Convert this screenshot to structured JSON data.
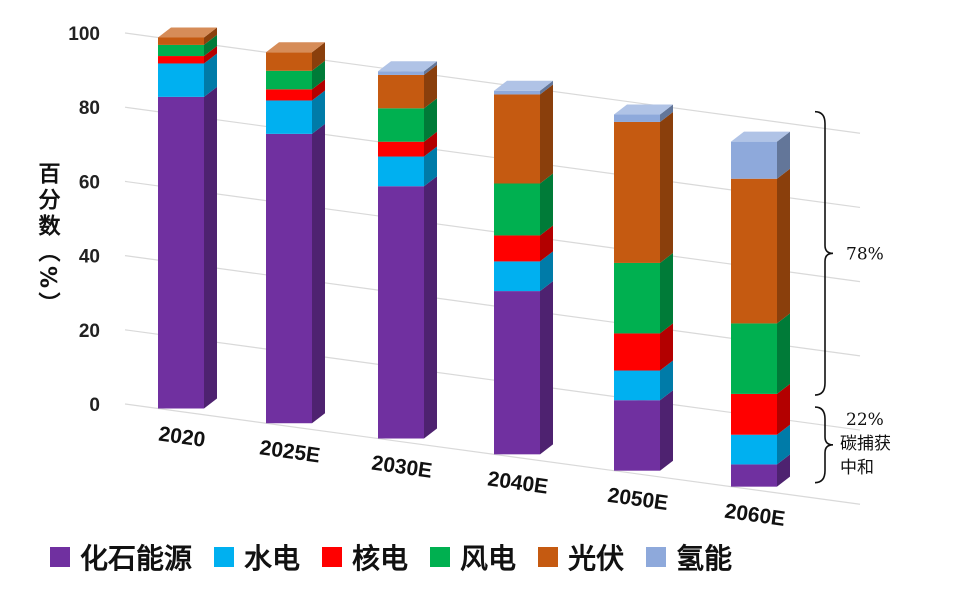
{
  "chart_data": {
    "type": "bar",
    "stacked": true,
    "categories": [
      "2020",
      "2025E",
      "2030E",
      "2040E",
      "2050E",
      "2060E"
    ],
    "ylabel": "百分数（%）",
    "ylim": [
      0,
      100
    ],
    "yticks": [
      "0",
      "20",
      "40",
      "60",
      "80",
      "100"
    ],
    "grid": true,
    "legend_position": "bottom",
    "series": [
      {
        "name": "化石能源",
        "color": "#7030A0",
        "values": [
          84,
          78,
          68,
          44,
          19,
          6
        ]
      },
      {
        "name": "水电",
        "color": "#00B0F0",
        "values": [
          9,
          9,
          8,
          8,
          8,
          8
        ]
      },
      {
        "name": "核电",
        "color": "#FF0000",
        "values": [
          2,
          3,
          4,
          7,
          10,
          11
        ]
      },
      {
        "name": "风电",
        "color": "#00B050",
        "values": [
          3,
          5,
          9,
          14,
          19,
          19
        ]
      },
      {
        "name": "光伏",
        "color": "#C55A11",
        "values": [
          2,
          5,
          9,
          24,
          38,
          39
        ]
      },
      {
        "name": "氢能",
        "color": "#8EA9DB",
        "values": [
          0,
          0,
          1,
          1,
          2,
          10
        ]
      }
    ],
    "annotations": [
      {
        "text": "78%",
        "lines": []
      },
      {
        "text": "22%",
        "lines": [
          "碳捕获",
          "中和"
        ]
      }
    ]
  }
}
